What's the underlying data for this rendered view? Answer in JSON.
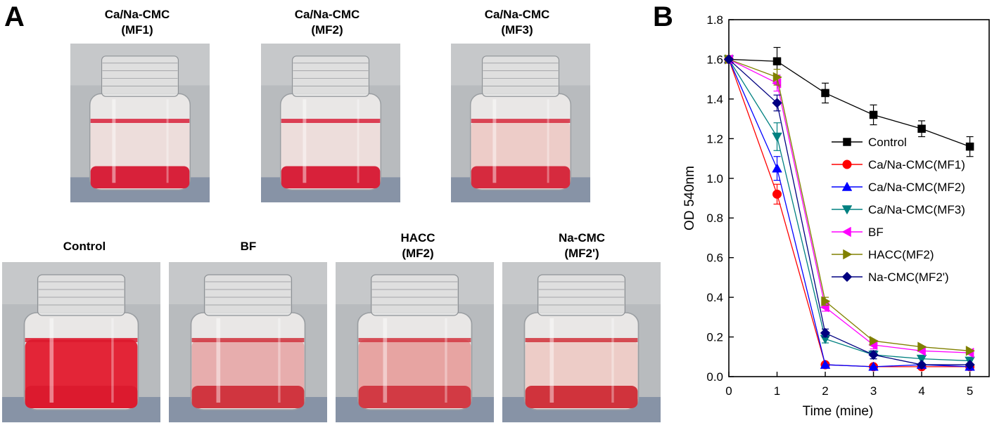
{
  "panel_a": {
    "letter": "A",
    "top_row": [
      {
        "label_line1": "Ca/Na-CMC",
        "label_line2": "(MF1)",
        "liquid_color": "#d8213a",
        "tint_color": "#f1d6d2",
        "tint_opacity": 0.55
      },
      {
        "label_line1": "Ca/Na-CMC",
        "label_line2": "(MF2)",
        "liquid_color": "#d8213a",
        "tint_color": "#f1d6d2",
        "tint_opacity": 0.55
      },
      {
        "label_line1": "Ca/Na-CMC",
        "label_line2": "(MF3)",
        "liquid_color": "#d62a3e",
        "tint_color": "#edc3bd",
        "tint_opacity": 0.75
      }
    ],
    "bottom_row": [
      {
        "label_line1": "Control",
        "label_line2": "",
        "liquid_color": "#dc1a2e",
        "tint_color": "#e32537",
        "tint_opacity": 1.0
      },
      {
        "label_line1": "BF",
        "label_line2": "",
        "liquid_color": "#d0353f",
        "tint_color": "#e7a6a6",
        "tint_opacity": 0.9
      },
      {
        "label_line1": "HACC",
        "label_line2": "(MF2)",
        "liquid_color": "#d23a44",
        "tint_color": "#e7a09e",
        "tint_opacity": 0.95
      },
      {
        "label_line1": "Na-CMC",
        "label_line2": "(MF2')",
        "liquid_color": "#d0333c",
        "tint_color": "#edc6bf",
        "tint_opacity": 0.8
      }
    ]
  },
  "panel_b": {
    "letter": "B"
  },
  "chart_data": {
    "type": "line",
    "xlabel": "Time (mine)",
    "ylabel": "OD 540nm",
    "xlim": [
      0,
      5.4
    ],
    "ylim": [
      0,
      1.8
    ],
    "x_ticks": [
      0,
      1,
      2,
      3,
      4,
      5
    ],
    "y_ticks": [
      0.0,
      0.2,
      0.4,
      0.6,
      0.8,
      1.0,
      1.2,
      1.4,
      1.6,
      1.8
    ],
    "x": [
      0,
      1,
      2,
      3,
      4,
      5
    ],
    "legend_position": "center-right",
    "series": [
      {
        "name": "Control",
        "color": "#000000",
        "marker": "square",
        "values": [
          1.6,
          1.59,
          1.43,
          1.32,
          1.25,
          1.16
        ],
        "errors": [
          0.01,
          0.07,
          0.05,
          0.05,
          0.04,
          0.05
        ]
      },
      {
        "name": "Ca/Na-CMC(MF1)",
        "color": "#ff0000",
        "marker": "circle",
        "values": [
          1.6,
          0.92,
          0.06,
          0.05,
          0.05,
          0.05
        ],
        "errors": [
          0.01,
          0.05,
          0.01,
          0.01,
          0.01,
          0.01
        ]
      },
      {
        "name": "Ca/Na-CMC(MF2)",
        "color": "#0000ff",
        "marker": "triangle-up",
        "values": [
          1.6,
          1.05,
          0.06,
          0.05,
          0.06,
          0.05
        ],
        "errors": [
          0.01,
          0.06,
          0.01,
          0.01,
          0.01,
          0.01
        ]
      },
      {
        "name": "Ca/Na-CMC(MF3)",
        "color": "#008080",
        "marker": "triangle-down",
        "values": [
          1.6,
          1.21,
          0.19,
          0.11,
          0.09,
          0.08
        ],
        "errors": [
          0.01,
          0.07,
          0.02,
          0.02,
          0.01,
          0.01
        ]
      },
      {
        "name": "BF",
        "color": "#ff00ff",
        "marker": "triangle-left",
        "values": [
          1.6,
          1.48,
          0.35,
          0.16,
          0.13,
          0.12
        ],
        "errors": [
          0.01,
          0.04,
          0.02,
          0.02,
          0.01,
          0.01
        ]
      },
      {
        "name": "HACC(MF2)",
        "color": "#808000",
        "marker": "triangle-right",
        "values": [
          1.6,
          1.51,
          0.38,
          0.18,
          0.15,
          0.13
        ],
        "errors": [
          0.01,
          0.04,
          0.02,
          0.01,
          0.01,
          0.01
        ]
      },
      {
        "name": "Na-CMC(MF2')",
        "color": "#000080",
        "marker": "diamond",
        "values": [
          1.6,
          1.38,
          0.22,
          0.11,
          0.06,
          0.06
        ],
        "errors": [
          0.01,
          0.04,
          0.02,
          0.02,
          0.01,
          0.01
        ]
      }
    ]
  }
}
